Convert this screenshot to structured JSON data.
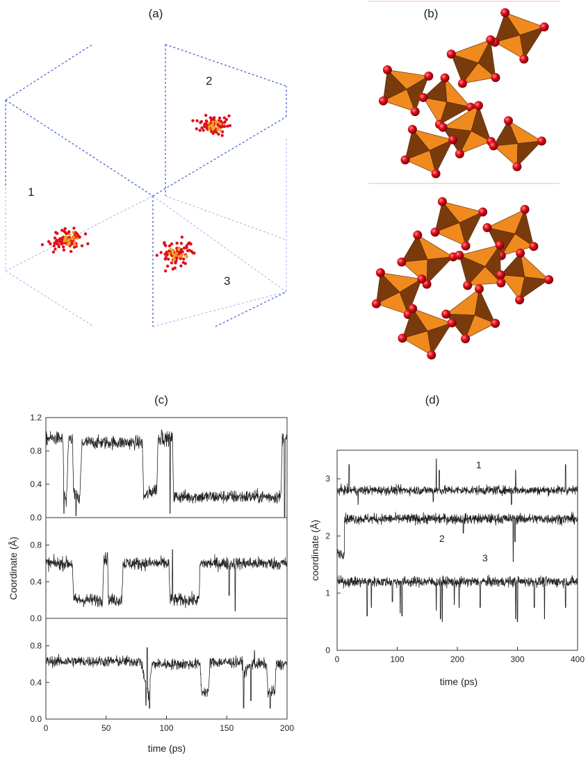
{
  "panel_labels": {
    "a": "(a)",
    "b": "(b)",
    "c": "(c)",
    "d": "(d)"
  },
  "panel_a": {
    "cluster_labels": [
      "1",
      "2",
      "3"
    ]
  },
  "colors": {
    "oxygen": "#e0101a",
    "silicon": "#f0a020",
    "tetra_light": "#f08a1e",
    "tetra_dark": "#7a3b0c",
    "cell_line": "#4a63d8",
    "trace": "#222222"
  },
  "chart_data": [
    {
      "type": "line",
      "panel": "(c)",
      "subplots": 3,
      "xlabel": "time (ps)",
      "ylabel": "Coordinate (Å)",
      "xlim": [
        0,
        200
      ],
      "ylim": [
        0,
        1.2
      ],
      "xticks": [
        "0",
        "50",
        "100",
        "150",
        "200"
      ],
      "yticks_top": [
        "0.0",
        "0.4",
        "0.8",
        "1.2"
      ],
      "yticks_mid": [
        "0.0",
        "0.4",
        "0.8"
      ],
      "yticks_bot": [
        "0.0",
        "0.4",
        "0.8"
      ],
      "series": [
        {
          "segments": [
            [
              0,
              0.95
            ],
            [
              14,
              0.95
            ],
            [
              15,
              0.35
            ],
            [
              17,
              0.15
            ],
            [
              19,
              0.95
            ],
            [
              22,
              0.95
            ],
            [
              23,
              0.3
            ],
            [
              28,
              0.2
            ],
            [
              30,
              0.9
            ],
            [
              80,
              0.9
            ],
            [
              81,
              0.25
            ],
            [
              92,
              0.35
            ],
            [
              93,
              0.95
            ],
            [
              105,
              0.95
            ],
            [
              106,
              0.25
            ],
            [
              195,
              0.25
            ],
            [
              196,
              0.95
            ],
            [
              200,
              0.95
            ]
          ],
          "noise": 0.08,
          "spikes": [
            [
              15,
              0.05
            ],
            [
              25,
              0.02
            ],
            [
              96,
              1.05
            ],
            [
              103,
              0.05
            ],
            [
              198,
              0.0
            ]
          ]
        },
        {
          "segments": [
            [
              0,
              0.6
            ],
            [
              22,
              0.6
            ],
            [
              23,
              0.2
            ],
            [
              47,
              0.2
            ],
            [
              48,
              0.65
            ],
            [
              51,
              0.65
            ],
            [
              52,
              0.2
            ],
            [
              63,
              0.2
            ],
            [
              64,
              0.6
            ],
            [
              102,
              0.6
            ],
            [
              103,
              0.2
            ],
            [
              127,
              0.2
            ],
            [
              128,
              0.6
            ],
            [
              200,
              0.6
            ]
          ],
          "noise": 0.07,
          "spikes": [
            [
              51,
              0.72
            ],
            [
              105,
              0.75
            ],
            [
              157,
              0.08
            ],
            [
              152,
              0.25
            ]
          ]
        },
        {
          "segments": [
            [
              0,
              0.63
            ],
            [
              79,
              0.63
            ],
            [
              80,
              0.55
            ],
            [
              85,
              0.25
            ],
            [
              88,
              0.6
            ],
            [
              128,
              0.6
            ],
            [
              129,
              0.3
            ],
            [
              135,
              0.3
            ],
            [
              136,
              0.62
            ],
            [
              163,
              0.62
            ],
            [
              164,
              0.5
            ],
            [
              170,
              0.6
            ],
            [
              183,
              0.6
            ],
            [
              184,
              0.3
            ],
            [
              190,
              0.3
            ],
            [
              191,
              0.6
            ],
            [
              200,
              0.6
            ]
          ],
          "noise": 0.06,
          "spikes": [
            [
              83,
              0.15
            ],
            [
              86,
              0.12
            ],
            [
              164,
              0.12
            ],
            [
              170,
              0.2
            ],
            [
              186,
              0.12
            ],
            [
              84,
              0.78
            ],
            [
              173,
              0.75
            ]
          ]
        }
      ]
    },
    {
      "type": "line",
      "panel": "(d)",
      "xlabel": "time (ps)",
      "ylabel": "coordinate (Å)",
      "xlim": [
        0,
        400
      ],
      "ylim": [
        0,
        3.5
      ],
      "xticks": [
        "0",
        "100",
        "200",
        "300",
        "400"
      ],
      "yticks": [
        "0",
        "1",
        "2",
        "3"
      ],
      "series": [
        {
          "name": "1",
          "base": 2.8,
          "noise": 0.08,
          "spikes": [
            [
              20,
              3.25
            ],
            [
              35,
              2.55
            ],
            [
              165,
              3.35
            ],
            [
              170,
              3.15
            ],
            [
              160,
              2.6
            ],
            [
              297,
              3.15
            ],
            [
              290,
              2.55
            ],
            [
              380,
              3.25
            ]
          ]
        },
        {
          "name": "2",
          "base": 2.3,
          "noise": 0.09,
          "start": [
            [
              0,
              1.7
            ],
            [
              12,
              1.65
            ]
          ],
          "spikes": [
            [
              293,
              1.55
            ],
            [
              296,
              1.9
            ],
            [
              210,
              2.05
            ]
          ]
        },
        {
          "name": "3",
          "base": 1.2,
          "noise": 0.09,
          "spikes": [
            [
              50,
              0.6
            ],
            [
              57,
              0.75
            ],
            [
              105,
              0.65
            ],
            [
              108,
              0.6
            ],
            [
              165,
              0.7
            ],
            [
              172,
              0.55
            ],
            [
              175,
              0.5
            ],
            [
              203,
              0.75
            ],
            [
              238,
              0.75
            ],
            [
              297,
              0.55
            ],
            [
              300,
              0.5
            ],
            [
              328,
              0.75
            ],
            [
              345,
              0.55
            ],
            [
              380,
              0.75
            ],
            [
              92,
              0.85
            ],
            [
              195,
              0.8
            ]
          ]
        }
      ]
    }
  ]
}
